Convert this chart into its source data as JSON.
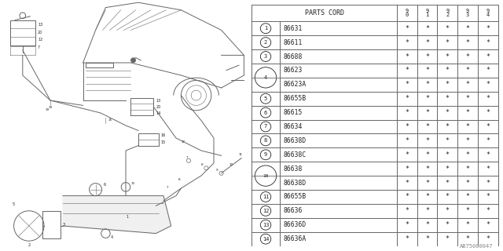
{
  "bg_color": "#ffffff",
  "table_header": "PARTS CORD",
  "col_headers": [
    "9\n0",
    "9\n1",
    "9\n2",
    "9\n3",
    "9\n4"
  ],
  "rows": [
    {
      "num": "1",
      "code": "86631",
      "group": false
    },
    {
      "num": "2",
      "code": "86611",
      "group": false
    },
    {
      "num": "3",
      "code": "86688",
      "group": false
    },
    {
      "num": "4",
      "code": "86623",
      "group": true,
      "group_first": true
    },
    {
      "num": "4",
      "code": "86623A",
      "group": true,
      "group_first": false
    },
    {
      "num": "5",
      "code": "86655B",
      "group": false
    },
    {
      "num": "6",
      "code": "86615",
      "group": false
    },
    {
      "num": "7",
      "code": "86634",
      "group": false
    },
    {
      "num": "8",
      "code": "86638D",
      "group": false
    },
    {
      "num": "9",
      "code": "86638C",
      "group": false
    },
    {
      "num": "10",
      "code": "86638",
      "group": true,
      "group_first": true
    },
    {
      "num": "10",
      "code": "86638D",
      "group": true,
      "group_first": false
    },
    {
      "num": "11",
      "code": "86655B",
      "group": false
    },
    {
      "num": "12",
      "code": "86636",
      "group": false
    },
    {
      "num": "13",
      "code": "86636D",
      "group": false
    },
    {
      "num": "14",
      "code": "86636A",
      "group": false
    }
  ],
  "star": "*",
  "watermark": "AB75000047",
  "line_color": "#666666",
  "text_color": "#222222"
}
